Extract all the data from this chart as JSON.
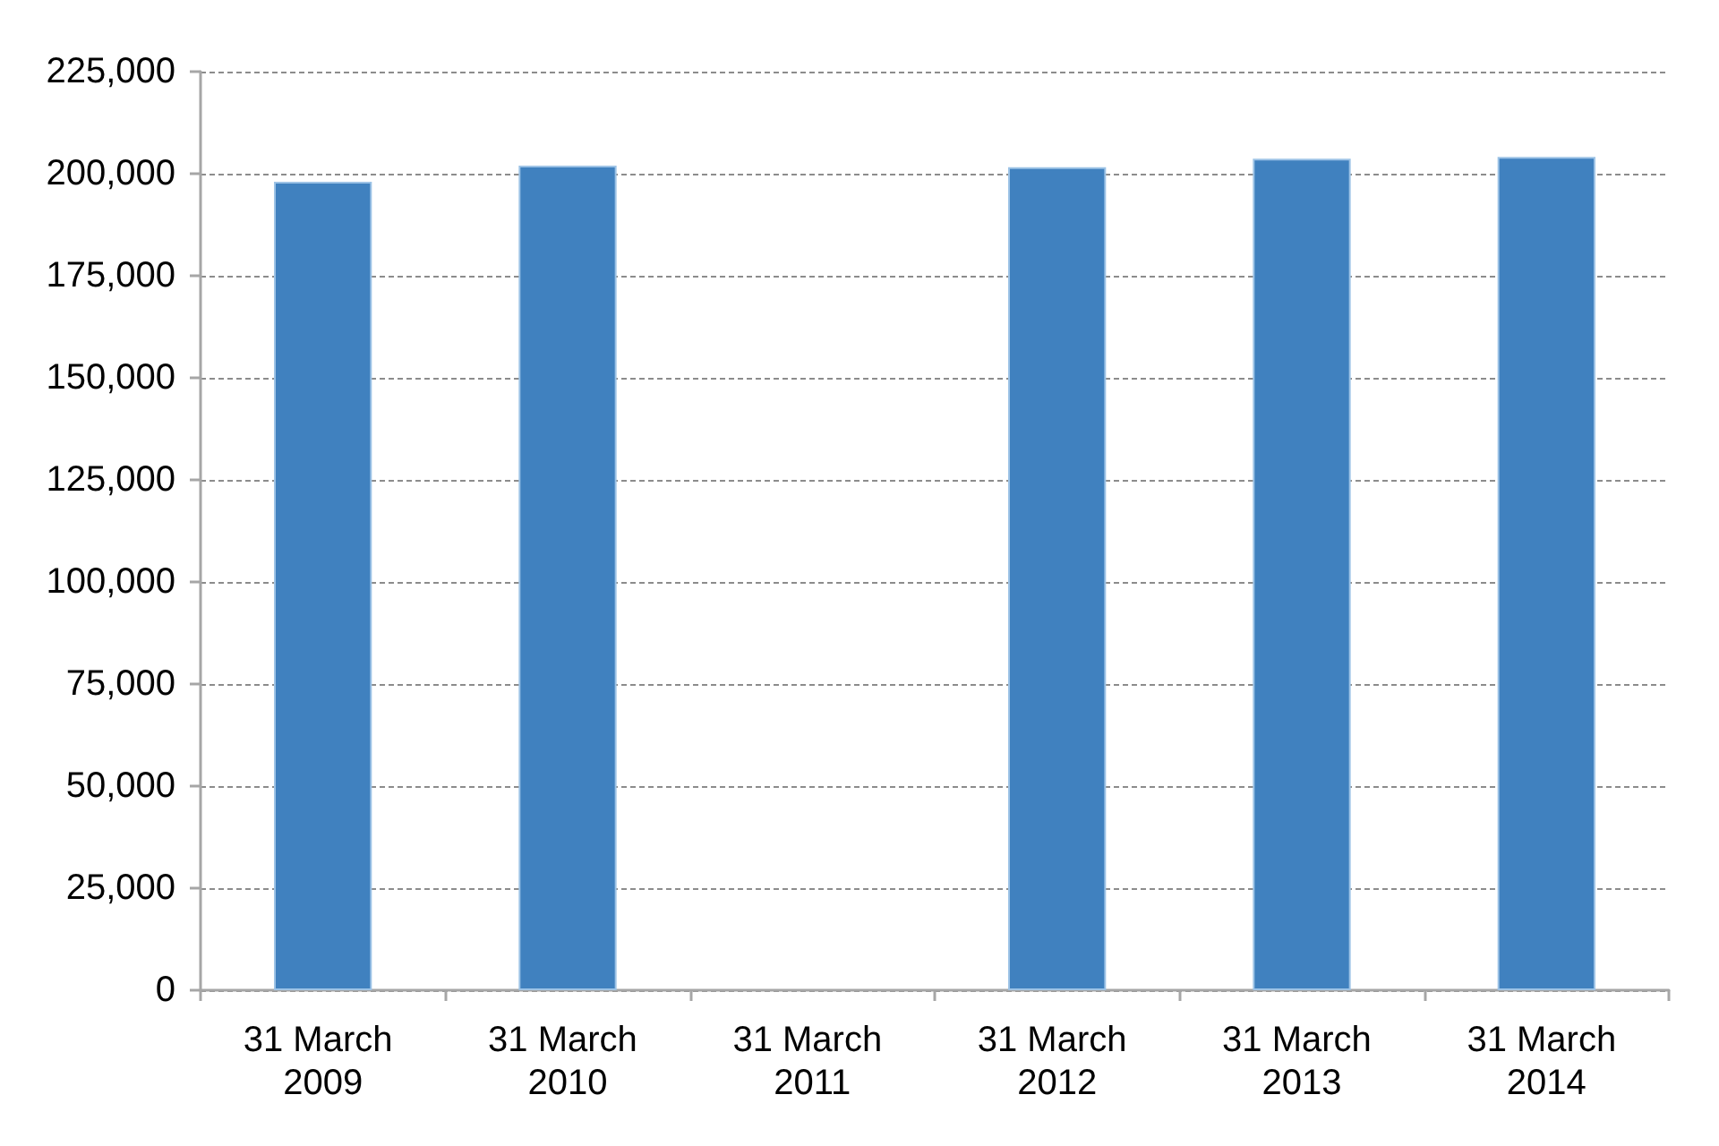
{
  "chart_data": {
    "type": "bar",
    "categories": [
      "31 March 2009",
      "31 March 2010",
      "31 March 2011",
      "31 March 2012",
      "31 March 2013",
      "31 March 2014"
    ],
    "values": [
      198000,
      202000,
      null,
      201600,
      203700,
      204100
    ],
    "color": "#4081bf",
    "ylim": [
      0,
      225000
    ],
    "yticks": [
      {
        "value": 0,
        "label": "0"
      },
      {
        "value": 25000,
        "label": "25,000"
      },
      {
        "value": 50000,
        "label": "50,000"
      },
      {
        "value": 75000,
        "label": "75,000"
      },
      {
        "value": 100000,
        "label": "100,000"
      },
      {
        "value": 125000,
        "label": "125,000"
      },
      {
        "value": 150000,
        "label": "150,000"
      },
      {
        "value": 175000,
        "label": "175,000"
      },
      {
        "value": 200000,
        "label": "200,000"
      },
      {
        "value": 225000,
        "label": "225,000"
      }
    ],
    "grid": "y"
  }
}
